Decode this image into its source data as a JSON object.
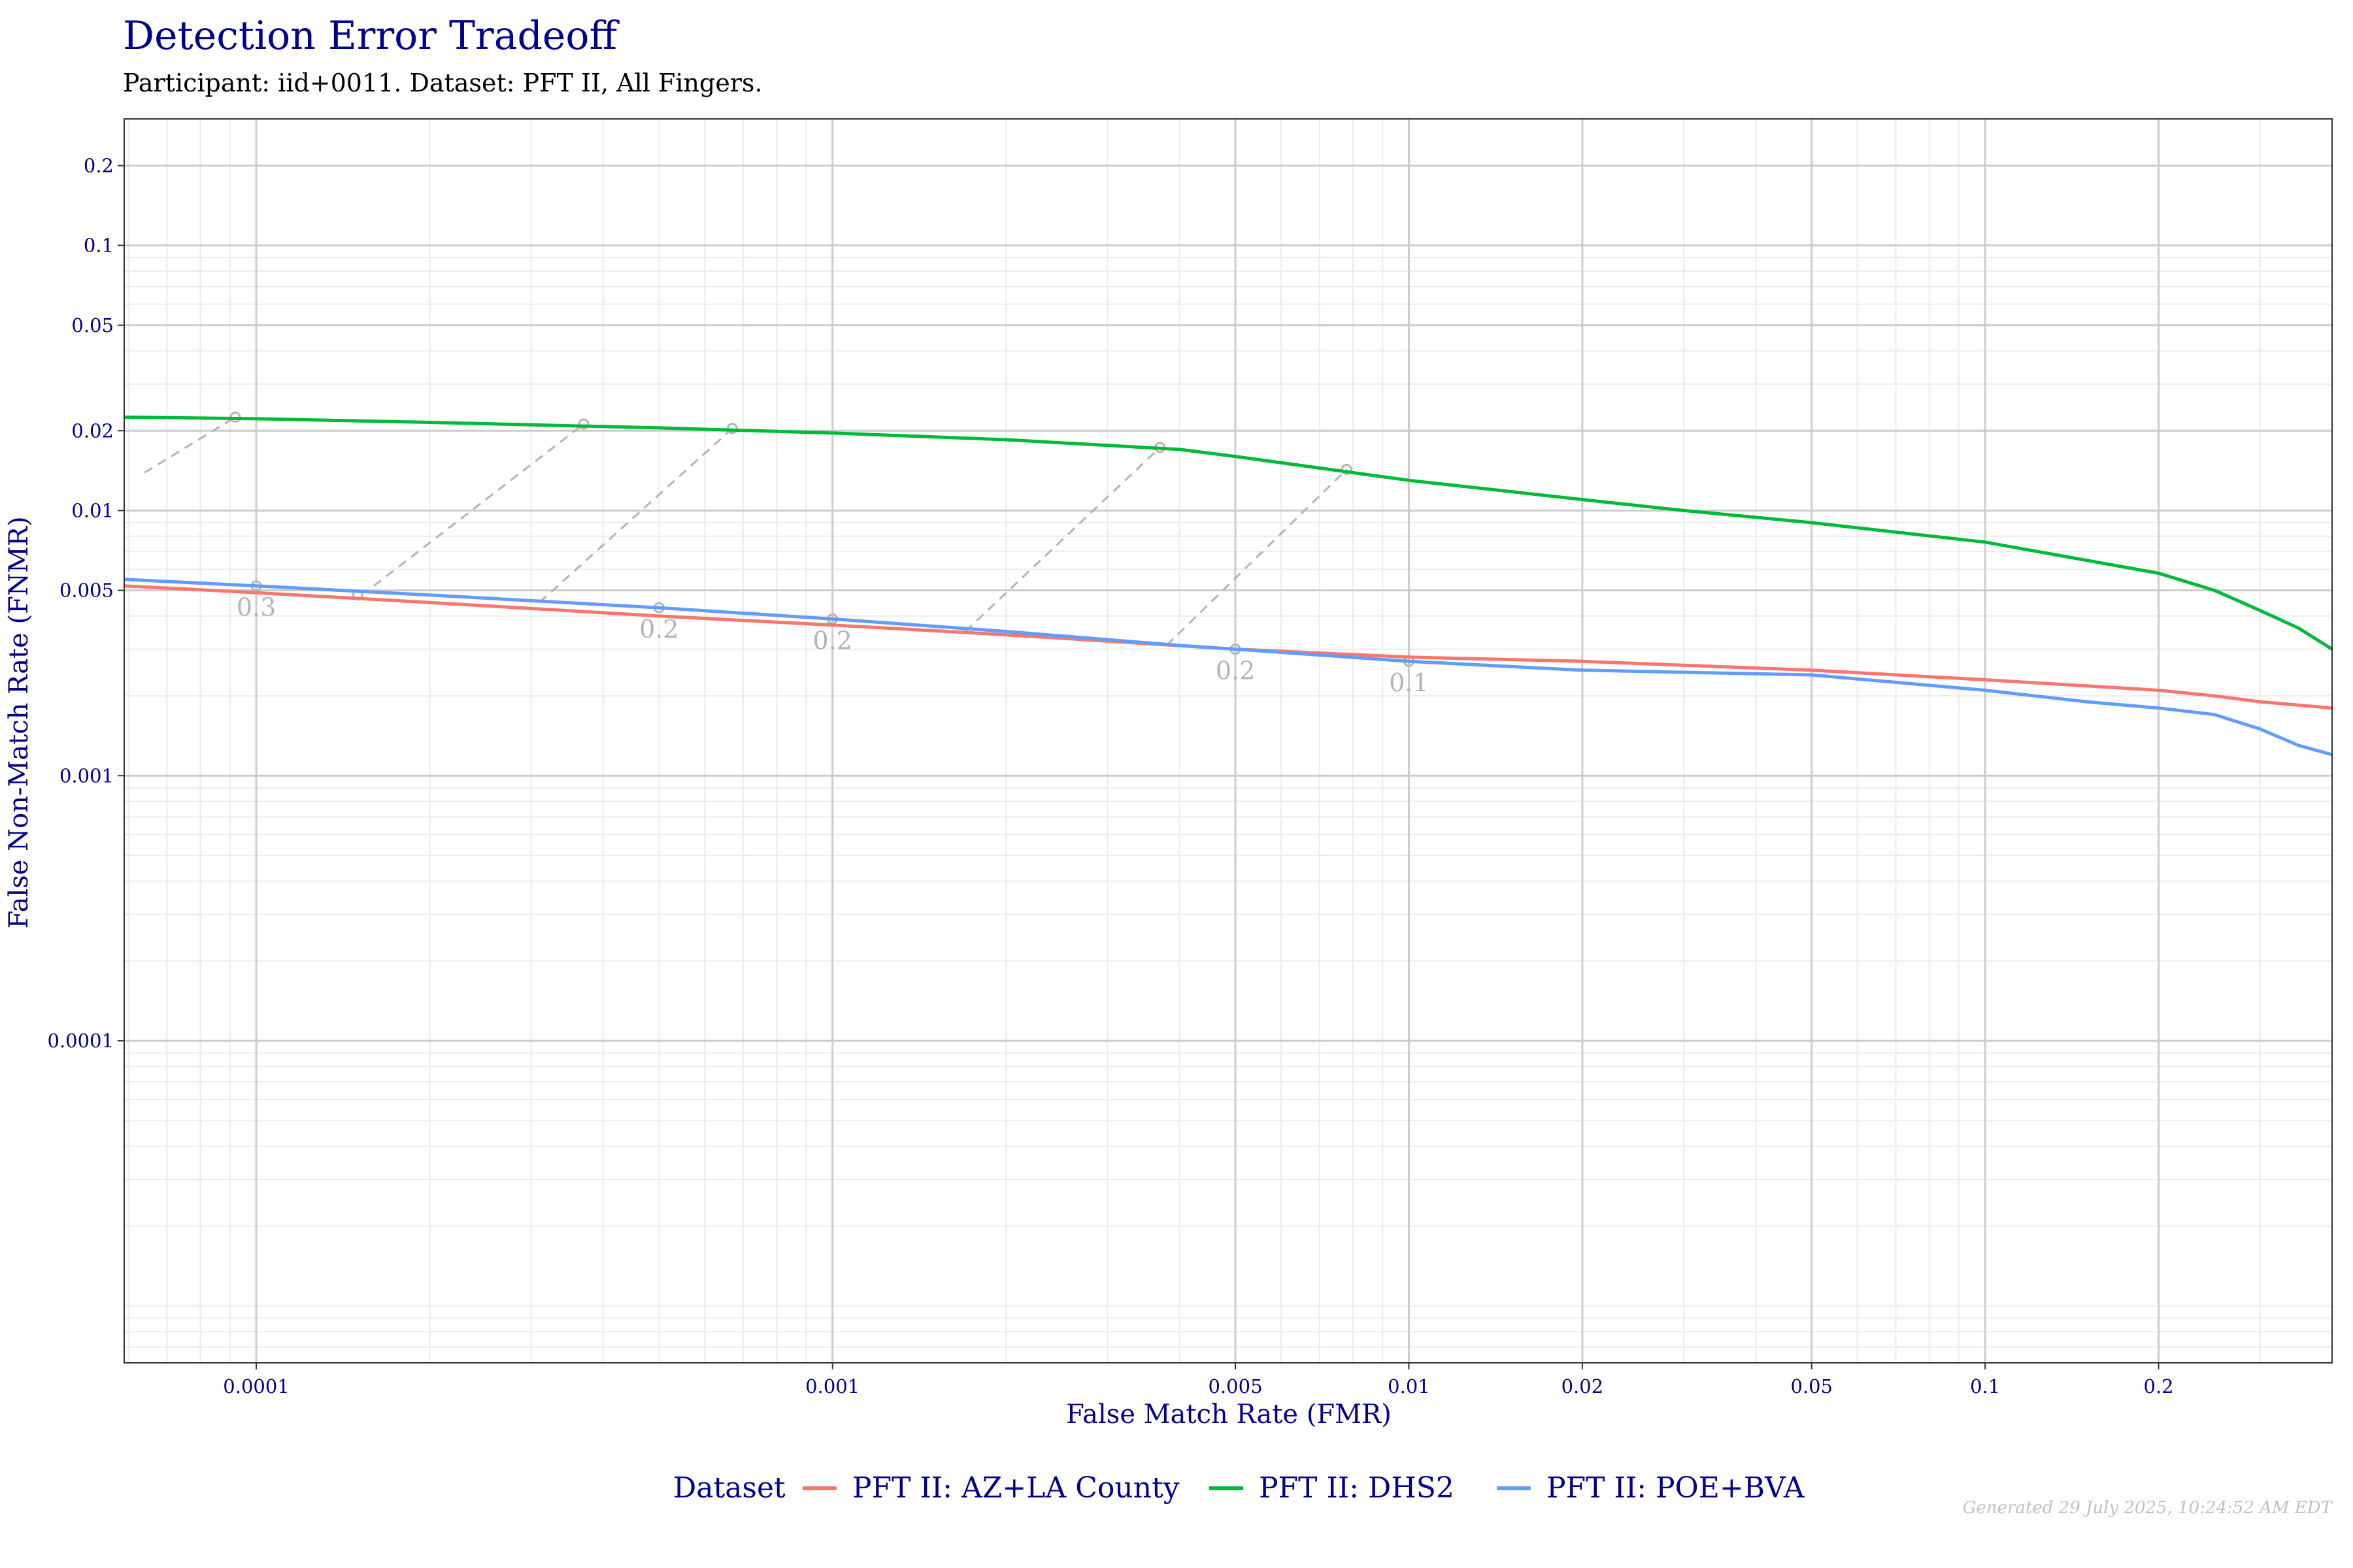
{
  "title": "Detection Error Tradeoff",
  "subtitle": "Participant: iid+0011. Dataset: PFT II, All Fingers.",
  "footer": "Generated 29 July 2025, 10:24:52 AM EDT",
  "chart_data": {
    "type": "line",
    "xlabel": "False Match Rate (FMR)",
    "ylabel": "False Non-Match Rate (FNMR)",
    "x_scale": "log",
    "y_scale": "log",
    "xlim": [
      5.9e-05,
      0.4
    ],
    "ylim": [
      6.1e-06,
      0.3
    ],
    "grid": true,
    "x_ticks": [
      {
        "value": 0.0001,
        "label": "0.0001"
      },
      {
        "value": 0.001,
        "label": "0.001"
      },
      {
        "value": 0.005,
        "label": "0.005"
      },
      {
        "value": 0.01,
        "label": "0.01"
      },
      {
        "value": 0.02,
        "label": "0.02"
      },
      {
        "value": 0.05,
        "label": "0.05"
      },
      {
        "value": 0.1,
        "label": "0.1"
      },
      {
        "value": 0.2,
        "label": "0.2"
      }
    ],
    "y_ticks": [
      {
        "value": 0.2,
        "label": "0.2"
      },
      {
        "value": 0.1,
        "label": "0.1"
      },
      {
        "value": 0.05,
        "label": "0.05"
      },
      {
        "value": 0.02,
        "label": "0.02"
      },
      {
        "value": 0.01,
        "label": "0.01"
      },
      {
        "value": 0.005,
        "label": "0.005"
      },
      {
        "value": 0.001,
        "label": "0.001"
      },
      {
        "value": 0.0001,
        "label": "0.0001"
      }
    ],
    "legend": {
      "title": "Dataset",
      "position": "bottom"
    },
    "series": [
      {
        "name": "PFT II: AZ+LA County",
        "color": "#f8766d",
        "x": [
          5.9e-05,
          0.0001,
          0.0002,
          0.0005,
          0.001,
          0.002,
          0.005,
          0.01,
          0.02,
          0.05,
          0.1,
          0.2,
          0.25,
          0.3,
          0.4
        ],
        "y": [
          0.0052,
          0.0049,
          0.0045,
          0.004,
          0.0037,
          0.0034,
          0.003,
          0.0028,
          0.0027,
          0.0025,
          0.0023,
          0.0021,
          0.002,
          0.0019,
          0.0018
        ]
      },
      {
        "name": "PFT II: DHS2",
        "color": "#00ba38",
        "x": [
          5.9e-05,
          0.0001,
          0.0002,
          0.0005,
          0.001,
          0.002,
          0.004,
          0.005,
          0.01,
          0.02,
          0.03,
          0.05,
          0.1,
          0.2,
          0.25,
          0.3,
          0.35,
          0.4
        ],
        "y": [
          0.0225,
          0.0222,
          0.0215,
          0.0205,
          0.0196,
          0.0185,
          0.017,
          0.016,
          0.013,
          0.011,
          0.01,
          0.009,
          0.0076,
          0.0058,
          0.005,
          0.0042,
          0.0036,
          0.003
        ]
      },
      {
        "name": "PFT II: POE+BVA",
        "color": "#619cff",
        "x": [
          5.9e-05,
          0.0001,
          0.0002,
          0.0005,
          0.001,
          0.002,
          0.004,
          0.005,
          0.01,
          0.02,
          0.05,
          0.1,
          0.15,
          0.2,
          0.25,
          0.3,
          0.35,
          0.4
        ],
        "y": [
          0.0055,
          0.0052,
          0.0048,
          0.0043,
          0.0039,
          0.0035,
          0.0031,
          0.003,
          0.0027,
          0.0025,
          0.0024,
          0.0021,
          0.0019,
          0.0018,
          0.0017,
          0.0015,
          0.0013,
          0.0012
        ]
      }
    ],
    "threshold_links": [
      {
        "label": "0.3",
        "from": [
          6.4e-05,
          0.0139
        ],
        "to": [
          9.2e-05,
          0.0225
        ],
        "marker": [
          0.0001,
          0.0052
        ]
      },
      {
        "label": "",
        "from": [
          0.00016,
          0.0052
        ],
        "to": [
          0.00037,
          0.0212
        ],
        "marker": [
          0.00015,
          0.0048
        ]
      },
      {
        "label": "0.2",
        "from": [
          0.00031,
          0.0045
        ],
        "to": [
          0.00067,
          0.0204
        ],
        "marker": [
          0.0005,
          0.0043
        ]
      },
      {
        "label": "0.2",
        "from": [
          0.0017,
          0.0035
        ],
        "to": [
          0.0037,
          0.0173
        ],
        "marker": [
          0.001,
          0.0039
        ]
      },
      {
        "label": "0.2",
        "from": [
          0.0038,
          0.0031
        ],
        "to": [
          0.0078,
          0.0143
        ],
        "marker": [
          0.005,
          0.003
        ]
      },
      {
        "label": "0.1",
        "from": [
          0.01,
          0.0027
        ],
        "to": null,
        "marker": [
          0.01,
          0.0027
        ]
      }
    ]
  }
}
